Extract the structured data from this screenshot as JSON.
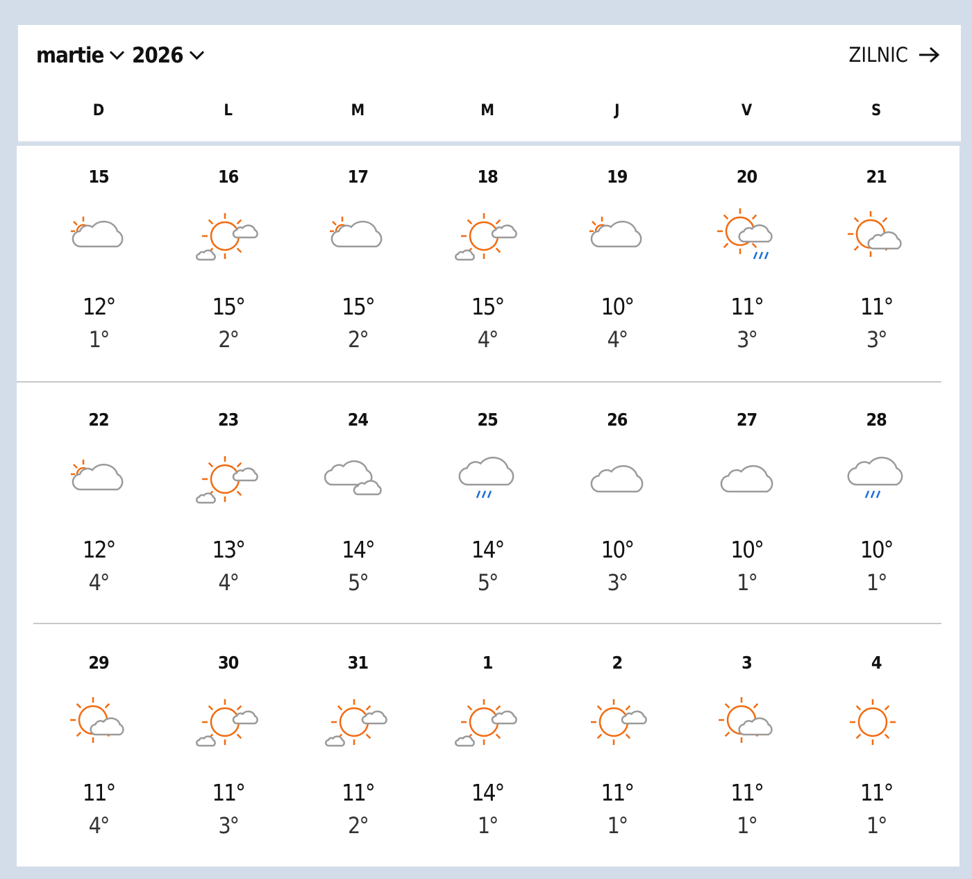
{
  "header": {
    "month": "martie",
    "year": "2026",
    "daily_label": "ZILNIC"
  },
  "weekdays": [
    "D",
    "L",
    "M",
    "M",
    "J",
    "V",
    "S"
  ],
  "colors": {
    "sun": "#f26a0f",
    "cloud": "#9a9a9a",
    "rain": "#1d6fd6",
    "background": "#d3dde9"
  },
  "weeks": [
    [
      {
        "date": "15",
        "icon": "mostly-cloudy",
        "high": "12°",
        "low": "1°"
      },
      {
        "date": "16",
        "icon": "partly-sunny",
        "high": "15°",
        "low": "2°"
      },
      {
        "date": "17",
        "icon": "mostly-cloudy",
        "high": "15°",
        "low": "2°"
      },
      {
        "date": "18",
        "icon": "partly-sunny",
        "high": "15°",
        "low": "4°"
      },
      {
        "date": "19",
        "icon": "mostly-cloudy",
        "high": "10°",
        "low": "4°"
      },
      {
        "date": "20",
        "icon": "sun-cloud-rain",
        "high": "11°",
        "low": "3°"
      },
      {
        "date": "21",
        "icon": "sun-cloud",
        "high": "11°",
        "low": "3°"
      }
    ],
    [
      {
        "date": "22",
        "icon": "mostly-cloudy",
        "high": "12°",
        "low": "4°"
      },
      {
        "date": "23",
        "icon": "partly-sunny",
        "high": "13°",
        "low": "4°"
      },
      {
        "date": "24",
        "icon": "cloudy",
        "high": "14°",
        "low": "5°"
      },
      {
        "date": "25",
        "icon": "rain",
        "high": "14°",
        "low": "5°"
      },
      {
        "date": "26",
        "icon": "cloud",
        "high": "10°",
        "low": "3°"
      },
      {
        "date": "27",
        "icon": "cloud",
        "high": "10°",
        "low": "1°"
      },
      {
        "date": "28",
        "icon": "rain",
        "high": "10°",
        "low": "1°"
      }
    ],
    [
      {
        "date": "29",
        "icon": "sun-cloud",
        "high": "11°",
        "low": "4°"
      },
      {
        "date": "30",
        "icon": "partly-sunny",
        "high": "11°",
        "low": "3°"
      },
      {
        "date": "31",
        "icon": "partly-sunny",
        "high": "11°",
        "low": "2°"
      },
      {
        "date": "1",
        "icon": "partly-sunny",
        "high": "14°",
        "low": "1°"
      },
      {
        "date": "2",
        "icon": "sun-small-cloud",
        "high": "11°",
        "low": "1°"
      },
      {
        "date": "3",
        "icon": "sun-cloud",
        "high": "11°",
        "low": "1°"
      },
      {
        "date": "4",
        "icon": "sunny",
        "high": "11°",
        "low": "1°"
      }
    ]
  ]
}
